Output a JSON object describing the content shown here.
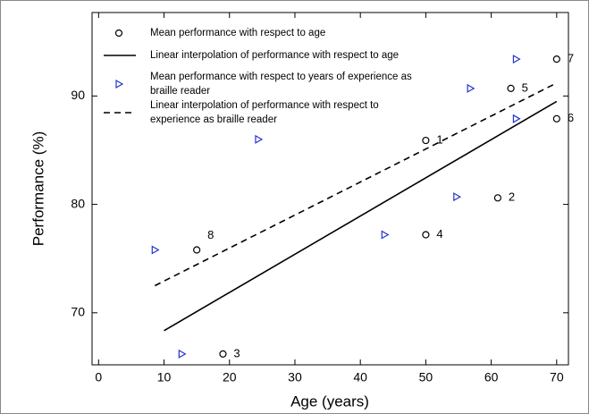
{
  "chart_data": {
    "type": "scatter",
    "xlabel": "Age (years)",
    "ylabel": "Performance (%)",
    "xlim": [
      -1,
      71.8
    ],
    "ylim": [
      65.2,
      97.7
    ],
    "xticks": [
      0,
      10,
      20,
      30,
      40,
      50,
      60,
      70
    ],
    "yticks": [
      70,
      80,
      90
    ],
    "legend": "upper left",
    "series": [
      {
        "name": "Mean performance with respect to age",
        "color": "#000000",
        "marker": "circle",
        "x": [
          15,
          19,
          50,
          50,
          61,
          63,
          70,
          70
        ],
        "values": [
          75.8,
          66.2,
          85.9,
          77.2,
          80.6,
          90.7,
          87.9,
          93.4
        ],
        "point_labels": [
          "8",
          "3",
          "1",
          "4",
          "2",
          "5",
          "6",
          "7"
        ]
      },
      {
        "name": "Linear interpolation of performance with respect to age",
        "color": "#000000",
        "line_style": "solid",
        "x": [
          10,
          70
        ],
        "values": [
          68.35,
          89.5
        ]
      },
      {
        "name": "Mean performance with respect to years of experience as braille reader",
        "color": "#2233cc",
        "marker": "triangle",
        "x": [
          8.6,
          12.7,
          24.4,
          43.7,
          54.7,
          56.8,
          63.8,
          63.8
        ],
        "values": [
          75.8,
          66.2,
          86.0,
          77.2,
          80.7,
          90.7,
          87.9,
          93.4
        ]
      },
      {
        "name": "Linear interpolation of performance with respect to experience as braille reader",
        "color": "#000000",
        "line_style": "dashed",
        "x": [
          8.6,
          70
        ],
        "values": [
          72.5,
          91.2
        ]
      }
    ]
  }
}
